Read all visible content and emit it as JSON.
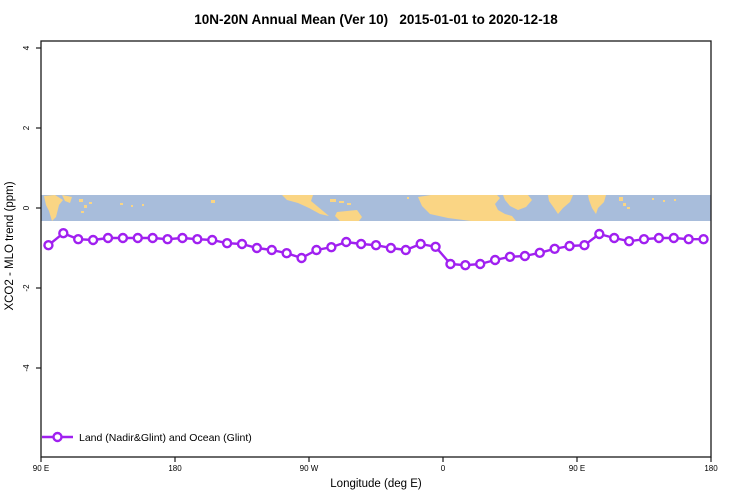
{
  "figure": {
    "title": "10N-20N Annual Mean (Ver 10)   2015-01-01 to 2020-12-18",
    "x_axis": {
      "label": "Longitude (deg E)",
      "ticks": [
        {
          "lon": 90,
          "label": "90 E"
        },
        {
          "lon": 180,
          "label": "180"
        },
        {
          "lon": 270,
          "label": "90 W"
        },
        {
          "lon": 360,
          "label": "0"
        },
        {
          "lon": 450,
          "label": "90 E"
        },
        {
          "lon": 540,
          "label": "180"
        }
      ]
    },
    "y_axis": {
      "label": "XCO2 - MLO trend (ppm)",
      "ticks": [
        4,
        2,
        0,
        -2,
        -4
      ]
    },
    "legend": {
      "label": "Land (Nadir&Glint) and Ocean (Glint)"
    },
    "colors": {
      "series": "#A020F0",
      "marker_fill": "#ffffff",
      "ocean": "#A8BDDB",
      "land": "#FAD584",
      "axis": "#1a1a1a",
      "background": "#ffffff"
    }
  },
  "chart_data": {
    "type": "line",
    "title": "10N-20N Annual Mean (Ver 10)   2015-01-01 to 2020-12-18",
    "xlabel": "Longitude (deg E)",
    "ylabel": "XCO2 - MLO trend (ppm)",
    "xlim": [
      90,
      540
    ],
    "ylim": [
      -6.2,
      4.2
    ],
    "x_tick_values": [
      90,
      180,
      270,
      360,
      450,
      540
    ],
    "x_tick_labels": [
      "90 E",
      "180",
      "90 W",
      "0",
      "90 E",
      "180"
    ],
    "y_tick_values": [
      4,
      2,
      0,
      -2,
      -4
    ],
    "grid": false,
    "legend_position": "bottom-left",
    "annotations": "horizontal world-map strip (10N-20N land/ocean) centered at y=0",
    "x": [
      95,
      105,
      115,
      125,
      135,
      145,
      155,
      165,
      175,
      185,
      195,
      205,
      215,
      225,
      235,
      245,
      255,
      265,
      275,
      285,
      295,
      305,
      315,
      325,
      335,
      345,
      355,
      365,
      375,
      385,
      395,
      405,
      415,
      425,
      435,
      445,
      455,
      465,
      475,
      485,
      495,
      505,
      515,
      525,
      535
    ],
    "series": [
      {
        "name": "Land (Nadir&Glint) and Ocean (Glint)",
        "values": [
          -0.93,
          -0.63,
          -0.78,
          -0.8,
          -0.75,
          -0.75,
          -0.75,
          -0.75,
          -0.78,
          -0.75,
          -0.78,
          -0.8,
          -0.88,
          -0.9,
          -1.0,
          -1.05,
          -1.13,
          -1.25,
          -1.05,
          -0.98,
          -0.85,
          -0.9,
          -0.93,
          -1.0,
          -1.05,
          -0.9,
          -0.97,
          -1.4,
          -1.43,
          -1.4,
          -1.3,
          -1.22,
          -1.2,
          -1.12,
          -1.02,
          -0.95,
          -0.93,
          -0.65,
          -0.75,
          -0.83,
          -0.78,
          -0.75,
          -0.75,
          -0.78,
          -0.78
        ]
      }
    ]
  },
  "map_band": {
    "description": "world coastline strip 10N-20N drawn across y=0",
    "y_center_ppm": 0,
    "half_height_ppm": 0.33,
    "ocean_color": "#A8BDDB",
    "land_color": "#FAD584",
    "land_polygons": [
      "3,1 14,0 22,5 18,10 15,22 11,26 8,16 5,10",
      "21,0 31,2 29,8 24,6",
      "241,0 272,0 270,6 276,11 282,16 288,21 279,19 268,13 257,8 246,5",
      "296,17 316,15 321,22 318,26 299,26 294,21",
      "377,2 390,0 452,0 456,0 459,3 454,9 457,15 464,19 471,21 475,26 430,26 407,23 389,19 381,11",
      "462,0 487,0 491,5 485,12 477,15 469,11 464,5",
      "507,0 532,0 529,7 522,13 517,19 513,13 508,6",
      "547,0 565,0 563,7 557,13 555,19 551,13 548,5"
    ],
    "land_islands": [
      [
        38,
        4,
        4,
        3
      ],
      [
        43,
        10,
        3,
        3
      ],
      [
        40,
        16,
        3,
        2
      ],
      [
        48,
        7,
        3,
        2
      ],
      [
        79,
        8,
        3,
        2
      ],
      [
        90,
        10,
        2,
        2
      ],
      [
        101,
        9,
        2,
        2
      ],
      [
        170,
        5,
        4,
        3
      ],
      [
        289,
        4,
        6,
        3
      ],
      [
        298,
        6,
        5,
        2
      ],
      [
        306,
        8,
        4,
        2
      ],
      [
        366,
        2,
        2,
        2
      ],
      [
        578,
        2,
        4,
        4
      ],
      [
        582,
        8,
        3,
        3
      ],
      [
        586,
        12,
        3,
        2
      ],
      [
        611,
        3,
        2,
        2
      ],
      [
        622,
        5,
        2,
        2
      ],
      [
        633,
        4,
        2,
        2
      ]
    ]
  }
}
